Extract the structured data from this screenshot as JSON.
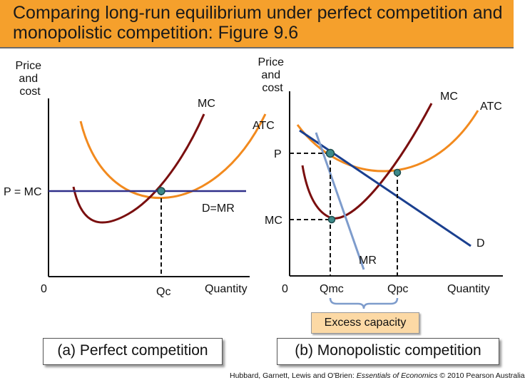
{
  "title": "Comparing long-run equilibrium under perfect competition and monopolistic competition: Figure 9.6",
  "panel_a": {
    "y_axis_label_lines": [
      "Price",
      "and",
      "cost"
    ],
    "mc_label": "MC",
    "price_label": "P = MC",
    "demand_label": "D=MR",
    "origin_label": "0",
    "quantity_tick": "Qc",
    "x_axis_label": "Quantity",
    "caption": "(a) Perfect competition"
  },
  "panel_b": {
    "y_axis_label_lines": [
      "Price",
      "and",
      "cost"
    ],
    "mc_label_top": "MC",
    "atc_label_right": "ATC",
    "atc_label_left": "ATC",
    "price_label": "P",
    "mc_level_label": "MC",
    "demand_label": "D",
    "mr_label": "MR",
    "origin_label": "0",
    "qmc_tick": "Qmc",
    "qpc_tick": "Qpc",
    "x_axis_label": "Quantity",
    "excess_capacity_label": "Excess capacity",
    "caption": "(b) Monopolistic competition"
  },
  "citation": {
    "prefix": "Hubbard, Garnett, Lewis and O'Brien: ",
    "italic": "Essentials of Economics",
    "suffix": " © 2010 Pearson Australia"
  },
  "colors": {
    "title_bar": "#f5a02c",
    "mc_curve": "#7a0f0f",
    "atc_curve": "#f28a1e",
    "demand_line": "#1a3f8f",
    "mr_line": "#7e9ccc",
    "price_line": "#30308a",
    "equilibrium_point": "#3d8a8a",
    "excess_box": "#fcd9a5"
  }
}
